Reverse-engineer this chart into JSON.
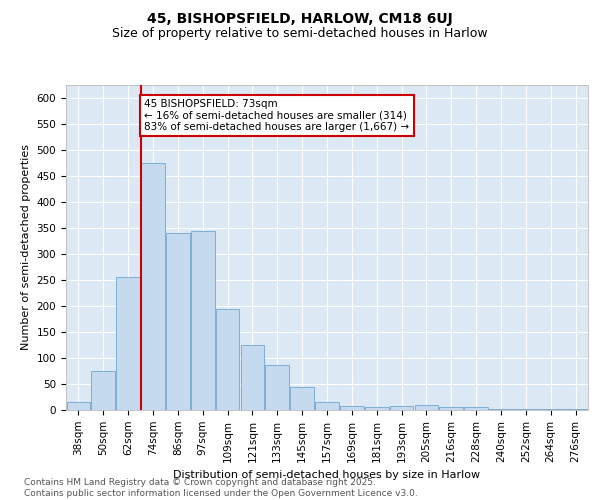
{
  "title1": "45, BISHOPSFIELD, HARLOW, CM18 6UJ",
  "title2": "Size of property relative to semi-detached houses in Harlow",
  "xlabel": "Distribution of semi-detached houses by size in Harlow",
  "ylabel": "Number of semi-detached properties",
  "categories": [
    "38sqm",
    "50sqm",
    "62sqm",
    "74sqm",
    "86sqm",
    "97sqm",
    "109sqm",
    "121sqm",
    "133sqm",
    "145sqm",
    "157sqm",
    "169sqm",
    "181sqm",
    "193sqm",
    "205sqm",
    "216sqm",
    "228sqm",
    "240sqm",
    "252sqm",
    "264sqm",
    "276sqm"
  ],
  "values": [
    15,
    75,
    255,
    475,
    340,
    345,
    195,
    125,
    87,
    45,
    15,
    8,
    5,
    8,
    10,
    5,
    5,
    2,
    2,
    2,
    2
  ],
  "bar_color": "#c5d9ef",
  "bar_edge_color": "#7bafd4",
  "annotation_text": "45 BISHOPSFIELD: 73sqm\n← 16% of semi-detached houses are smaller (314)\n83% of semi-detached houses are larger (1,667) →",
  "annotation_box_color": "#ffffff",
  "annotation_edge_color": "#cc0000",
  "vline_x": 3,
  "ylim": [
    0,
    625
  ],
  "yticks": [
    0,
    50,
    100,
    150,
    200,
    250,
    300,
    350,
    400,
    450,
    500,
    550,
    600
  ],
  "background_color": "#dce9f5",
  "footer": "Contains HM Land Registry data © Crown copyright and database right 2025.\nContains public sector information licensed under the Open Government Licence v3.0.",
  "title1_fontsize": 10,
  "title2_fontsize": 9,
  "xlabel_fontsize": 8,
  "ylabel_fontsize": 8,
  "tick_fontsize": 7.5,
  "annotation_fontsize": 7.5,
  "footer_fontsize": 6.5
}
